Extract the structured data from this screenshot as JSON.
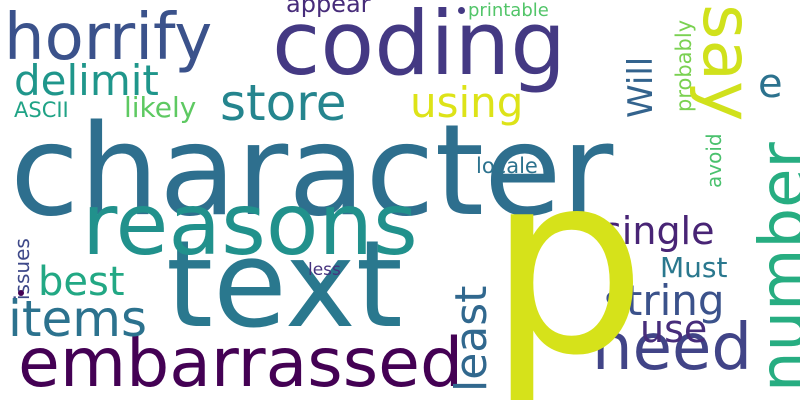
{
  "words": [
    {
      "text": "character",
      "color": "#2e6f8e"
    },
    {
      "text": "p",
      "color": "#d6e21a"
    },
    {
      "text": "text",
      "color": "#2a788e"
    },
    {
      "text": "coding",
      "color": "#443983"
    },
    {
      "text": "reasons",
      "color": "#21918c"
    },
    {
      "text": "horrify",
      "color": "#3b528b"
    },
    {
      "text": "embarrassed",
      "color": "#440154"
    },
    {
      "text": "say",
      "color": "#d0e11c"
    },
    {
      "text": "number",
      "color": "#27ad81"
    },
    {
      "text": "need",
      "color": "#414487"
    },
    {
      "text": "store",
      "color": "#25858e"
    },
    {
      "text": "items",
      "color": "#2c728e"
    },
    {
      "text": "delimit",
      "color": "#1f968b"
    },
    {
      "text": "string",
      "color": "#3b528b"
    },
    {
      "text": "least",
      "color": "#31688e"
    },
    {
      "text": "using",
      "color": "#dde318"
    },
    {
      "text": "best",
      "color": "#22a884"
    },
    {
      "text": "use",
      "color": "#472d7b"
    },
    {
      "text": "single",
      "color": "#482475"
    },
    {
      "text": "Will",
      "color": "#33638d"
    },
    {
      "text": "e",
      "color": "#2c728e"
    },
    {
      "text": "Must",
      "color": "#2a788e"
    },
    {
      "text": "likely",
      "color": "#5ec962"
    },
    {
      "text": "appear",
      "color": "#472c7a"
    },
    {
      "text": "probably",
      "color": "#7ad151"
    },
    {
      "text": "ASCII",
      "color": "#20a386"
    },
    {
      "text": "locale",
      "color": "#2c728e"
    },
    {
      "text": "avoid",
      "color": "#4ac16d"
    },
    {
      "text": "printable",
      "color": "#52c569"
    },
    {
      "text": "issues",
      "color": "#3e4989"
    },
    {
      "text": "less",
      "color": "#46327e"
    }
  ],
  "dots": [
    {
      "color": "#443983"
    },
    {
      "color": "#440154"
    }
  ]
}
